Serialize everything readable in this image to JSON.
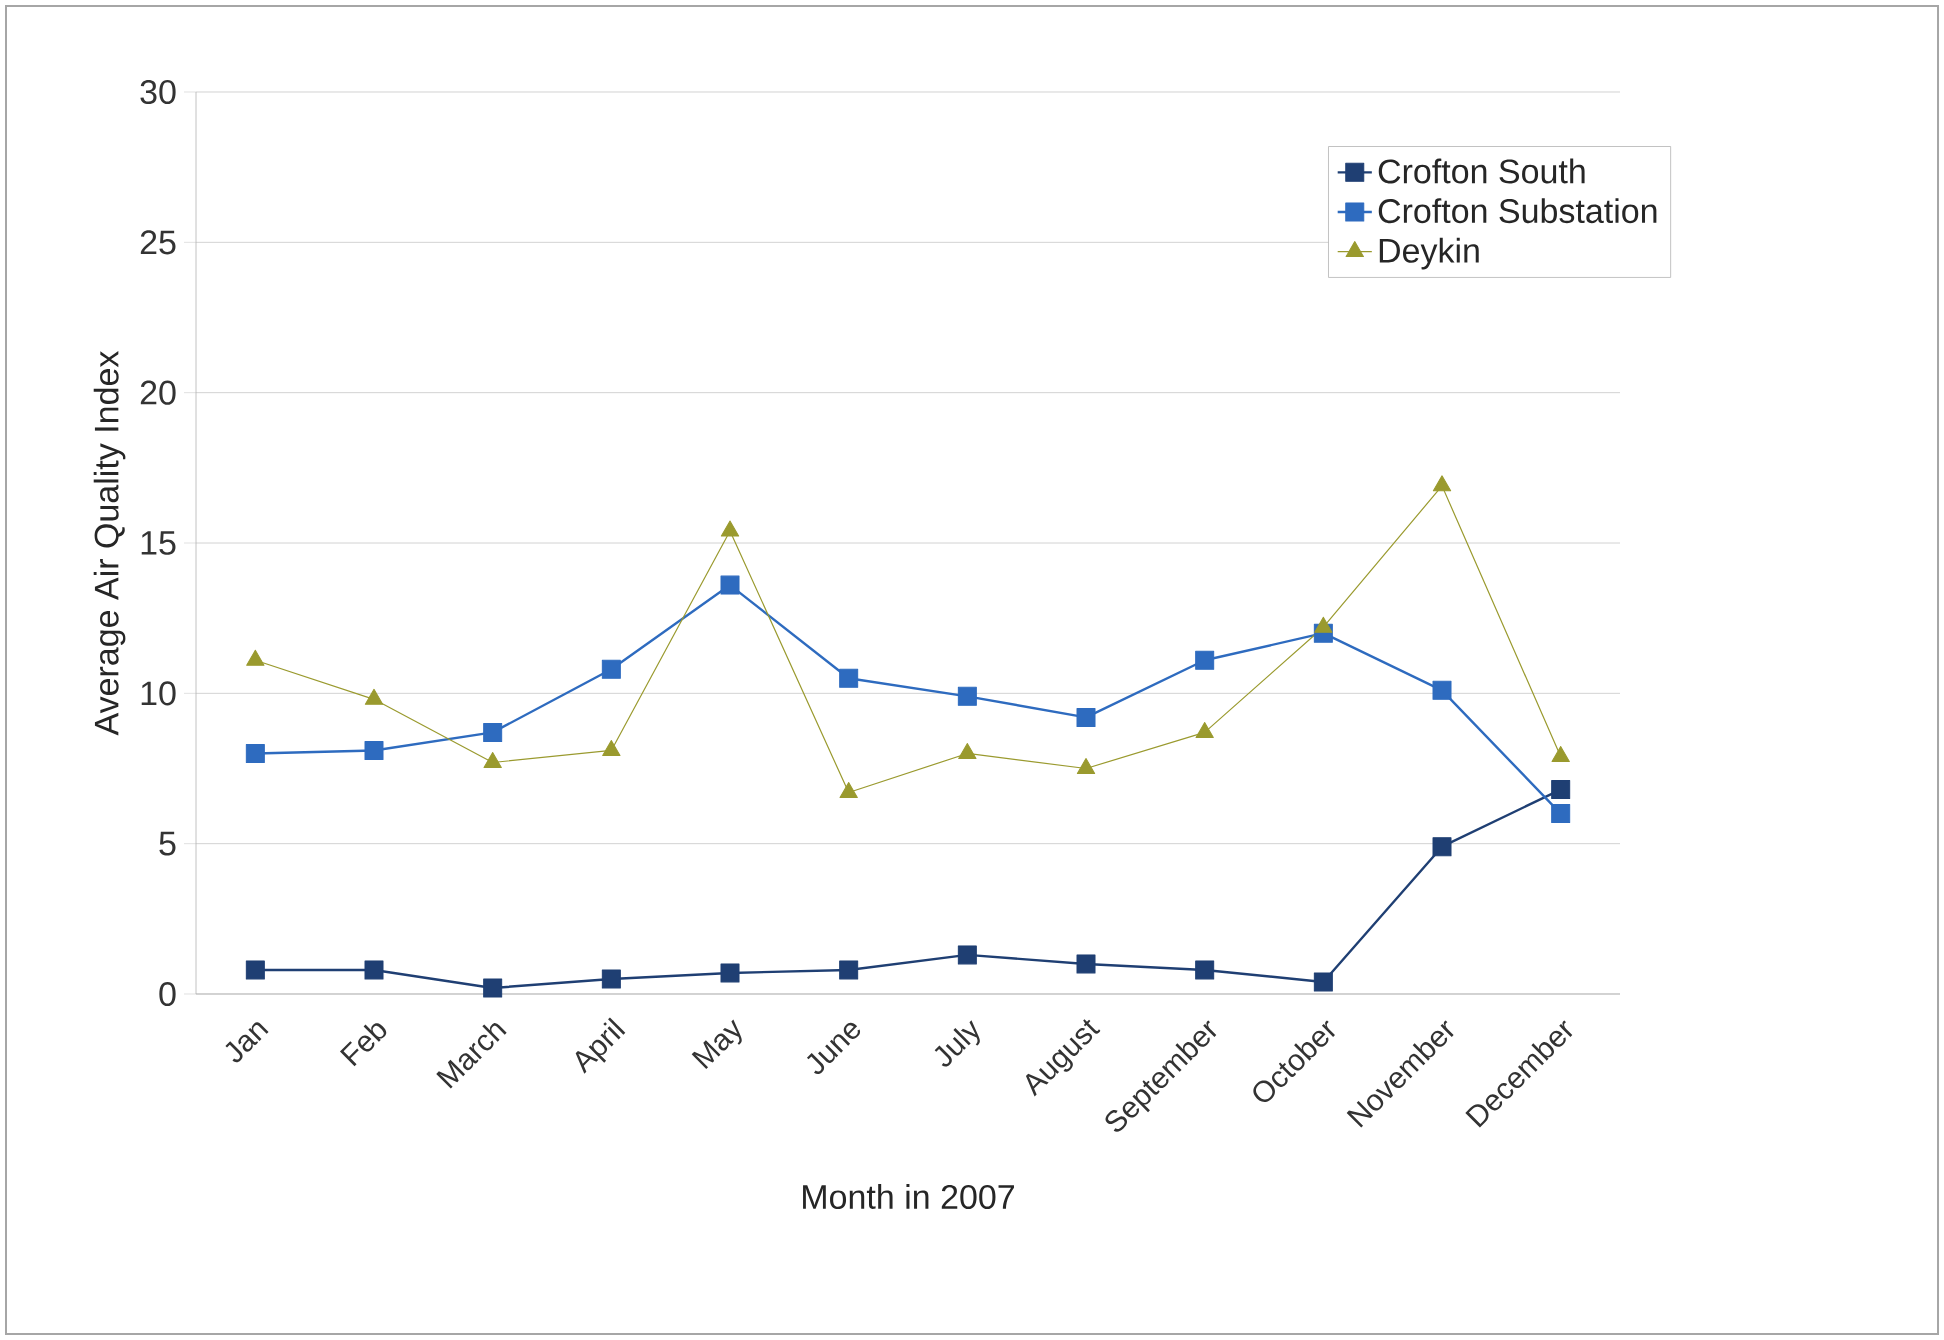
{
  "chart_data": {
    "type": "line",
    "xlabel": "Month in 2007",
    "ylabel": "Average Air Quality Index",
    "categories": [
      "Jan",
      "Feb",
      "March",
      "April",
      "May",
      "June",
      "July",
      "August",
      "September",
      "October",
      "November",
      "December"
    ],
    "series": [
      {
        "name": "Crofton South",
        "color": "#1f3f73",
        "marker": "square",
        "values": [
          0.8,
          0.8,
          0.2,
          0.5,
          0.7,
          0.8,
          1.3,
          1.0,
          0.8,
          0.4,
          4.9,
          6.8
        ]
      },
      {
        "name": "Crofton Substation",
        "color": "#2e6bbf",
        "marker": "square",
        "values": [
          8.0,
          8.1,
          8.7,
          10.8,
          13.6,
          10.5,
          9.9,
          9.2,
          11.1,
          12.0,
          10.1,
          6.0
        ]
      },
      {
        "name": "Deykin",
        "color": "#9a9a2e",
        "marker": "triangle",
        "values": [
          11.1,
          9.8,
          7.7,
          8.1,
          15.4,
          6.7,
          8.0,
          7.5,
          8.7,
          12.2,
          16.9,
          7.9
        ]
      }
    ],
    "ylim": [
      0,
      30
    ],
    "yticks": [
      0,
      5,
      10,
      15,
      20,
      25,
      30
    ],
    "grid": "y",
    "legend": "top right"
  }
}
